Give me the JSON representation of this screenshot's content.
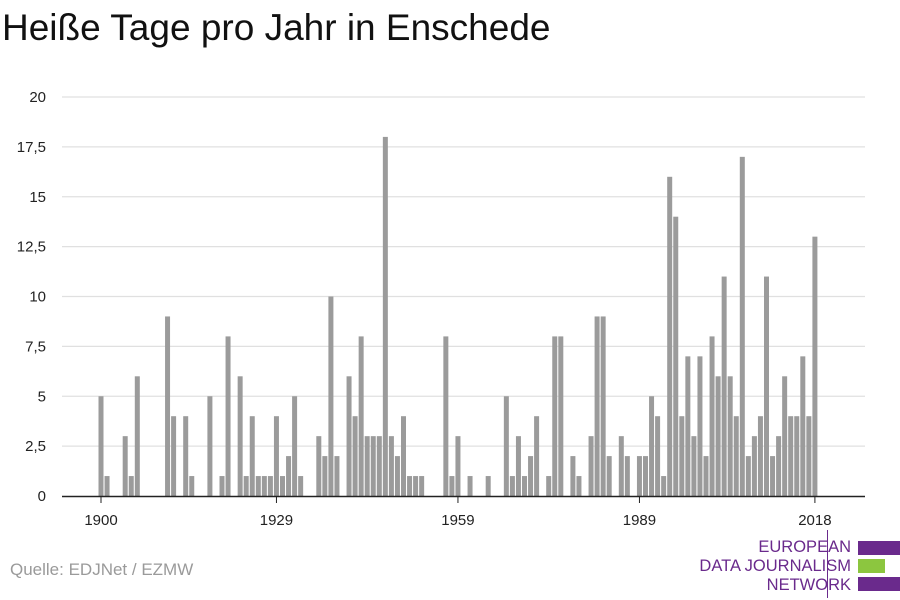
{
  "title": "Heiße Tage pro Jahr in Enschede",
  "source": "Quelle: EDJNet / EZMW",
  "logo": {
    "lines": [
      "EUROPEAN",
      "DATA JOURNALISM",
      "NETWORK"
    ],
    "colors": {
      "purple": "#6a2a8c",
      "green": "#8cc63f"
    }
  },
  "colors": {
    "bar": "#9b9b9b",
    "grid": "#e0e0e0",
    "axis": "#222222",
    "text": "#222222"
  },
  "chart_data": {
    "type": "bar",
    "title": "Heiße Tage pro Jahr in Enschede",
    "xlabel": "",
    "ylabel": "",
    "ylim": [
      0,
      20
    ],
    "xlim": [
      1900,
      2018
    ],
    "grid": true,
    "y_ticks": [
      {
        "value": 0,
        "label": "0"
      },
      {
        "value": 2.5,
        "label": "2,5"
      },
      {
        "value": 5,
        "label": "5"
      },
      {
        "value": 7.5,
        "label": "7,5"
      },
      {
        "value": 10,
        "label": "10"
      },
      {
        "value": 12.5,
        "label": "12,5"
      },
      {
        "value": 15,
        "label": "15"
      },
      {
        "value": 17.5,
        "label": "17,5"
      },
      {
        "value": 20,
        "label": "20"
      }
    ],
    "x_ticks": [
      {
        "value": 1900,
        "label": "1900"
      },
      {
        "value": 1929,
        "label": "1929"
      },
      {
        "value": 1959,
        "label": "1959"
      },
      {
        "value": 1989,
        "label": "1989"
      },
      {
        "value": 2018,
        "label": "2018"
      }
    ],
    "x": [
      1900,
      1901,
      1902,
      1903,
      1904,
      1905,
      1906,
      1907,
      1908,
      1909,
      1910,
      1911,
      1912,
      1913,
      1914,
      1915,
      1916,
      1917,
      1918,
      1919,
      1920,
      1921,
      1922,
      1923,
      1924,
      1925,
      1926,
      1927,
      1928,
      1929,
      1930,
      1931,
      1932,
      1933,
      1934,
      1935,
      1936,
      1937,
      1938,
      1939,
      1940,
      1941,
      1942,
      1943,
      1944,
      1945,
      1946,
      1947,
      1948,
      1949,
      1950,
      1951,
      1952,
      1953,
      1954,
      1955,
      1956,
      1957,
      1958,
      1959,
      1960,
      1961,
      1962,
      1963,
      1964,
      1965,
      1966,
      1967,
      1968,
      1969,
      1970,
      1971,
      1972,
      1973,
      1974,
      1975,
      1976,
      1977,
      1978,
      1979,
      1980,
      1981,
      1982,
      1983,
      1984,
      1985,
      1986,
      1987,
      1988,
      1989,
      1990,
      1991,
      1992,
      1993,
      1994,
      1995,
      1996,
      1997,
      1998,
      1999,
      2000,
      2001,
      2002,
      2003,
      2004,
      2005,
      2006,
      2007,
      2008,
      2009,
      2010,
      2011,
      2012,
      2013,
      2014,
      2015,
      2016,
      2017,
      2018
    ],
    "values": [
      5,
      1,
      0,
      0,
      3,
      1,
      6,
      0,
      0,
      0,
      0,
      9,
      4,
      0,
      4,
      1,
      0,
      0,
      5,
      0,
      1,
      8,
      0,
      6,
      1,
      4,
      1,
      1,
      1,
      4,
      1,
      2,
      5,
      1,
      0,
      0,
      3,
      2,
      10,
      2,
      0,
      6,
      4,
      8,
      3,
      3,
      3,
      18,
      3,
      2,
      4,
      1,
      1,
      1,
      0,
      0,
      0,
      8,
      1,
      3,
      0,
      1,
      0,
      0,
      1,
      0,
      0,
      5,
      1,
      3,
      1,
      2,
      4,
      0,
      1,
      8,
      8,
      0,
      2,
      1,
      0,
      3,
      9,
      9,
      2,
      0,
      3,
      2,
      0,
      2,
      2,
      5,
      4,
      1,
      16,
      14,
      4,
      7,
      3,
      7,
      2,
      8,
      6,
      11,
      6,
      4,
      17,
      2,
      3,
      4,
      11,
      2,
      3,
      6,
      4,
      4,
      7,
      4,
      13
    ]
  }
}
